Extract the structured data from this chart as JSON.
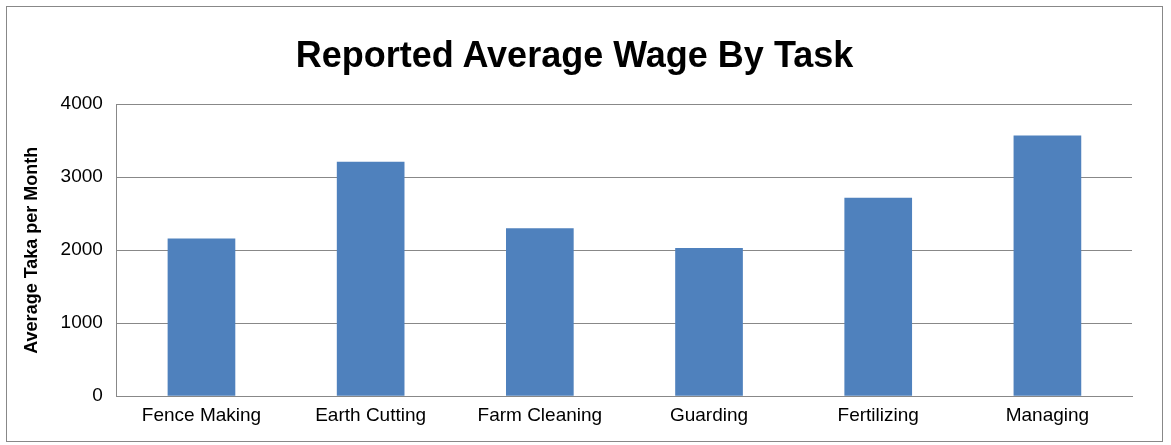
{
  "chart_data": {
    "type": "bar",
    "title": "Reported Average Wage By Task",
    "ylabel": "Average Taka per Month",
    "categories": [
      "Fence Making",
      "Earth Cutting",
      "Farm Cleaning",
      "Guarding",
      "Fertilizing",
      "Managing"
    ],
    "values": [
      2160,
      3210,
      2300,
      2030,
      2720,
      3570
    ],
    "color": "#4f81bd",
    "ylim": [
      0,
      4000
    ],
    "yticks": [
      0,
      1000,
      2000,
      3000,
      4000
    ],
    "grid": "y",
    "legend": false
  }
}
